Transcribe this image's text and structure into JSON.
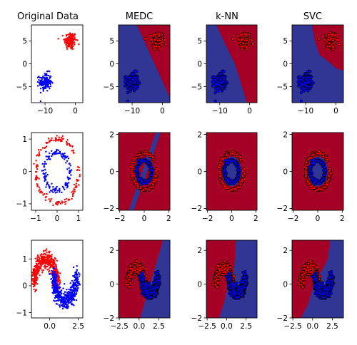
{
  "colors": {
    "red_region": "#a50026",
    "blue_region": "#313695",
    "red_point": "#ff0000",
    "blue_point": "#0000ff",
    "point_edge": "#000000"
  },
  "column_titles": [
    "Original Data",
    "MEDC",
    "k-NN",
    "SVC"
  ],
  "chart_data": [
    {
      "type": "scatter",
      "dataset": "blobs",
      "title": "Original Data",
      "xlim": [
        -14.5,
        2.5
      ],
      "ylim": [
        -8.5,
        8.5
      ],
      "xticks": [
        -10,
        0
      ],
      "xtick_labels": [
        "−10",
        "0"
      ],
      "yticks": [
        -5,
        0,
        5
      ],
      "ytick_labels": [
        "−5",
        "0",
        "5"
      ],
      "series": [
        {
          "color": "red",
          "center": [
            -1.6,
            5.0
          ],
          "spread": [
            1.0,
            1.0
          ],
          "n": 150
        },
        {
          "color": "blue",
          "center": [
            -9.9,
            -4.0
          ],
          "spread": [
            1.0,
            1.0
          ],
          "n": 150
        }
      ]
    },
    {
      "type": "decision",
      "dataset": "blobs",
      "classifier": "MEDC",
      "title": "MEDC",
      "xlim": [
        -14.5,
        2.5
      ],
      "ylim": [
        -8.5,
        8.5
      ],
      "xticks": [
        -10,
        0
      ],
      "xtick_labels": [
        "−10",
        "0"
      ],
      "yticks": [
        -5,
        0,
        5
      ],
      "ytick_labels": [
        "−5",
        "0",
        "5"
      ],
      "boundary": {
        "kind": "line",
        "points": [
          [
            -8.5,
            8.5
          ],
          [
            2.5,
            -7.5
          ]
        ],
        "red_side": "upper-right"
      }
    },
    {
      "type": "decision",
      "dataset": "blobs",
      "classifier": "k-NN",
      "title": "k-NN",
      "xlim": [
        -14.5,
        2.5
      ],
      "ylim": [
        -8.5,
        8.5
      ],
      "xticks": [
        -10,
        0
      ],
      "xtick_labels": [
        "−10",
        "0"
      ],
      "yticks": [
        -5,
        0,
        5
      ],
      "ytick_labels": [
        "−5",
        "0",
        "5"
      ],
      "boundary": {
        "kind": "polyline",
        "points": [
          [
            -11.2,
            8.5
          ],
          [
            -8.0,
            4.0
          ],
          [
            -5.0,
            0.0
          ],
          [
            -3.5,
            -3.0
          ],
          [
            -1.0,
            -8.5
          ]
        ],
        "red_side": "upper-right"
      }
    },
    {
      "type": "decision",
      "dataset": "blobs",
      "classifier": "SVC",
      "title": "SVC",
      "xlim": [
        -14.5,
        2.5
      ],
      "ylim": [
        -8.5,
        8.5
      ],
      "xticks": [
        -10,
        0
      ],
      "xtick_labels": [
        "−10",
        "0"
      ],
      "yticks": [
        -5,
        0,
        5
      ],
      "ytick_labels": [
        "−5",
        "0",
        "5"
      ],
      "boundary": {
        "kind": "polyline",
        "points": [
          [
            -8.0,
            8.5
          ],
          [
            -7.0,
            5.0
          ],
          [
            -5.5,
            2.0
          ],
          [
            -2.5,
            0.5
          ],
          [
            0.0,
            -1.0
          ],
          [
            2.5,
            -1.5
          ]
        ],
        "red_side": "upper-right"
      }
    },
    {
      "type": "scatter",
      "dataset": "circles",
      "xlim": [
        -1.2,
        1.2
      ],
      "ylim": [
        -1.2,
        1.2
      ],
      "xticks": [
        -1,
        0,
        1
      ],
      "xtick_labels": [
        "−1",
        "0",
        "1"
      ],
      "yticks": [
        -1,
        0,
        1
      ],
      "ytick_labels": [
        "−1",
        "0",
        "1"
      ],
      "series": [
        {
          "color": "red",
          "ring_radius": 1.0,
          "noise": 0.05,
          "n": 150
        },
        {
          "color": "blue",
          "ring_radius": 0.6,
          "noise": 0.05,
          "n": 150
        }
      ]
    },
    {
      "type": "decision",
      "dataset": "circles",
      "classifier": "MEDC",
      "xlim": [
        -2.1,
        2.1
      ],
      "ylim": [
        -2.1,
        2.1
      ],
      "xticks": [
        -2,
        0,
        2
      ],
      "xtick_labels": [
        "−2",
        "0",
        "2"
      ],
      "yticks": [
        -2,
        0,
        2
      ],
      "ytick_labels": [
        "−2",
        "0",
        "2"
      ],
      "boundary": {
        "kind": "band",
        "slope": 1.9,
        "offset_low": -0.45,
        "offset_high": 0.35,
        "note": "blue diagonal band through the origin, red elsewhere"
      }
    },
    {
      "type": "decision",
      "dataset": "circles",
      "classifier": "k-NN",
      "xlim": [
        -2.1,
        2.1
      ],
      "ylim": [
        -2.1,
        2.1
      ],
      "xticks": [
        -2,
        0,
        2
      ],
      "xtick_labels": [
        "−2",
        "0",
        "2"
      ],
      "yticks": [
        -2,
        0,
        2
      ],
      "ytick_labels": [
        "−2",
        "0",
        "2"
      ],
      "boundary": {
        "kind": "circle",
        "radius": 0.8,
        "inside": "blue"
      }
    },
    {
      "type": "decision",
      "dataset": "circles",
      "classifier": "SVC",
      "xlim": [
        -2.1,
        2.1
      ],
      "ylim": [
        -2.1,
        2.1
      ],
      "xticks": [
        -2,
        0,
        2
      ],
      "xtick_labels": [
        "−2",
        "0",
        "2"
      ],
      "yticks": [
        -2,
        0,
        2
      ],
      "ytick_labels": [
        "−2",
        "0",
        "2"
      ],
      "boundary": {
        "kind": "circle",
        "radius": 0.8,
        "inside": "blue"
      }
    },
    {
      "type": "scatter",
      "dataset": "moons",
      "xlim": [
        -1.6,
        2.9
      ],
      "ylim": [
        -1.2,
        1.7
      ],
      "xticks": [
        0,
        2.5
      ],
      "xtick_labels": [
        "0.0",
        "2.5"
      ],
      "yticks": [
        -1,
        0,
        1
      ],
      "ytick_labels": [
        "−1",
        "0",
        "1"
      ],
      "series": [
        {
          "color": "red",
          "shape": "upper-moon",
          "noise": 0.15,
          "n": 500
        },
        {
          "color": "blue",
          "shape": "lower-moon",
          "noise": 0.15,
          "n": 500
        }
      ]
    },
    {
      "type": "decision",
      "dataset": "moons",
      "classifier": "MEDC",
      "xlim": [
        -2.6,
        3.9
      ],
      "ylim": [
        -2.0,
        2.6
      ],
      "xticks": [
        -2.5,
        0,
        2.5
      ],
      "xtick_labels": [
        "−2.5",
        "0.0",
        "2.5"
      ],
      "yticks": [
        -2,
        0,
        2
      ],
      "ytick_labels": [
        "−2",
        "0",
        "2"
      ],
      "boundary": {
        "kind": "line",
        "points": [
          [
            0.1,
            -2.0
          ],
          [
            3.0,
            2.6
          ]
        ],
        "red_side": "left"
      }
    },
    {
      "type": "decision",
      "dataset": "moons",
      "classifier": "k-NN",
      "xlim": [
        -2.6,
        3.9
      ],
      "ylim": [
        -2.0,
        2.6
      ],
      "xticks": [
        -2.5,
        0,
        2.5
      ],
      "xtick_labels": [
        "−2.5",
        "0.0",
        "2.5"
      ],
      "yticks": [
        -2,
        0,
        2
      ],
      "ytick_labels": [
        "−2",
        "0",
        "2"
      ],
      "boundary": {
        "kind": "polyline",
        "points": [
          [
            -1.0,
            -2.0
          ],
          [
            -0.3,
            -1.0
          ],
          [
            0.2,
            0.0
          ],
          [
            0.8,
            0.6
          ],
          [
            1.0,
            1.2
          ],
          [
            1.2,
            2.6
          ]
        ],
        "red_side": "left"
      }
    },
    {
      "type": "decision",
      "dataset": "moons",
      "classifier": "SVC",
      "xlim": [
        -2.6,
        3.9
      ],
      "ylim": [
        -2.0,
        2.6
      ],
      "xticks": [
        -2.5,
        0,
        2.5
      ],
      "xtick_labels": [
        "−2.5",
        "0.0",
        "2.5"
      ],
      "yticks": [
        -2,
        0,
        2
      ],
      "ytick_labels": [
        "−2",
        "0",
        "2"
      ],
      "boundary": {
        "kind": "polyline",
        "points": [
          [
            -1.5,
            -2.0
          ],
          [
            -0.6,
            -1.2
          ],
          [
            0.0,
            -0.2
          ],
          [
            0.7,
            0.5
          ],
          [
            1.4,
            1.0
          ],
          [
            1.9,
            1.5
          ],
          [
            2.2,
            2.6
          ]
        ],
        "red_side": "left"
      }
    }
  ]
}
